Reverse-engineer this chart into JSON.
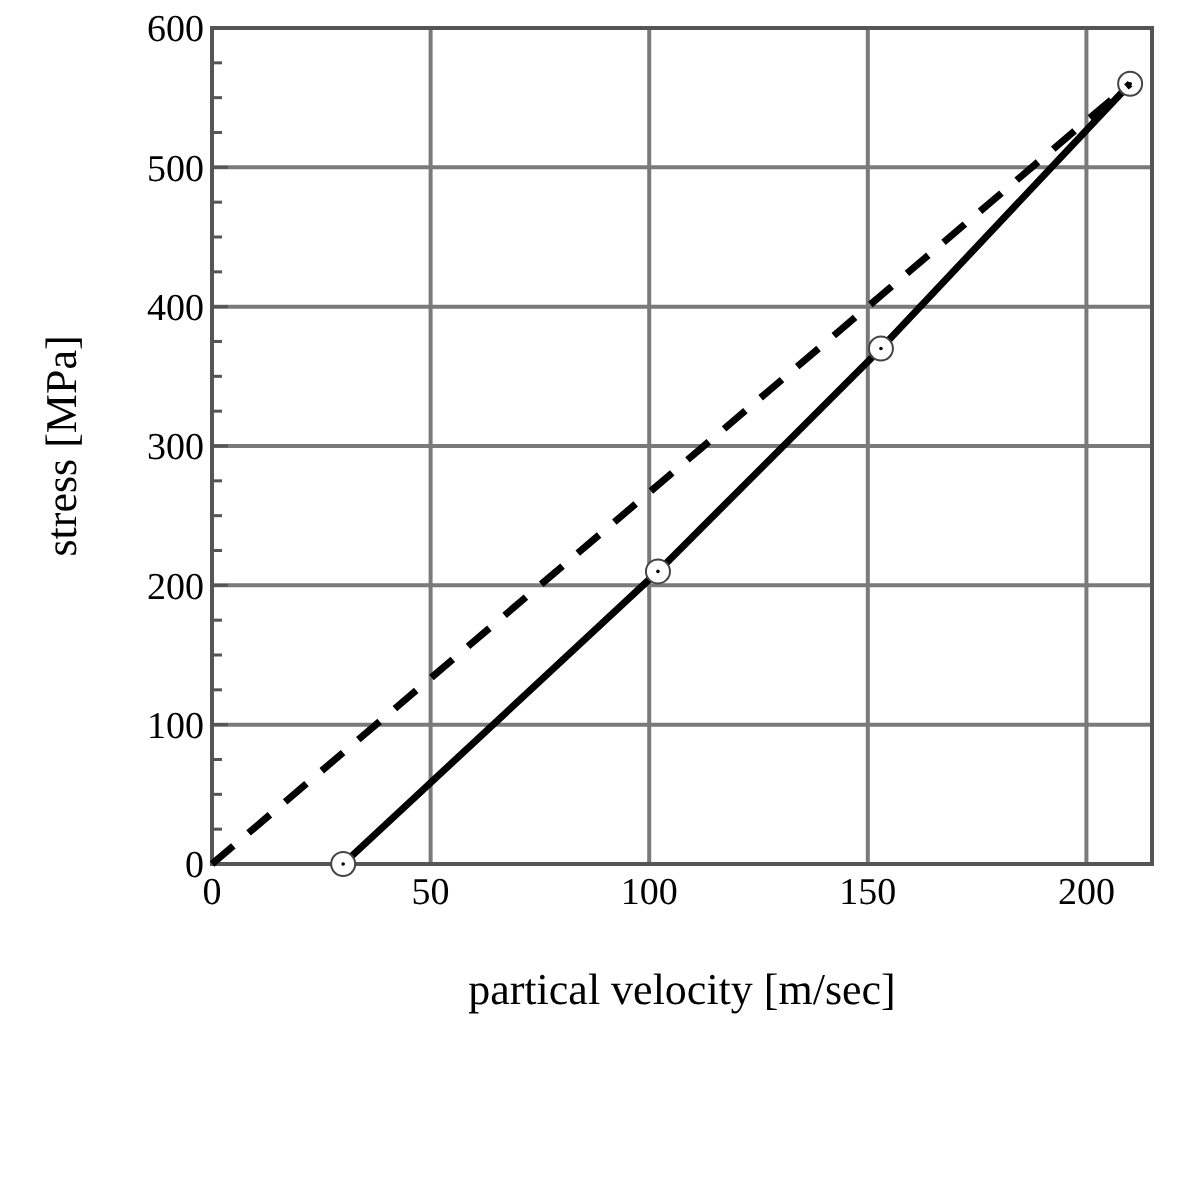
{
  "chart_data": {
    "type": "line",
    "xlabel": "partical velocity [m/sec]",
    "ylabel": "stress [MPa]",
    "xlim": [
      0,
      215
    ],
    "xticks": [
      0,
      50,
      100,
      150,
      200
    ],
    "ylim": [
      0,
      600
    ],
    "yticks": [
      0,
      {
        "value": 25,
        "label": null
      },
      {
        "value": 50,
        "label": null
      },
      {
        "value": 75,
        "label": null
      },
      100,
      {
        "value": 125,
        "label": null
      },
      {
        "value": 150,
        "label": null
      },
      {
        "value": 175,
        "label": null
      },
      200,
      {
        "value": 225,
        "label": null
      },
      {
        "value": 250,
        "label": null
      },
      {
        "value": 275,
        "label": null
      },
      300,
      {
        "value": 325,
        "label": null
      },
      {
        "value": 350,
        "label": null
      },
      {
        "value": 375,
        "label": null
      },
      400,
      {
        "value": 425,
        "label": null
      },
      {
        "value": 450,
        "label": null
      },
      {
        "value": 475,
        "label": null
      },
      500,
      {
        "value": 525,
        "label": null
      },
      {
        "value": 550,
        "label": null
      },
      {
        "value": 575,
        "label": null
      },
      600
    ],
    "grid": true,
    "series": [
      {
        "color": "#000000",
        "x": [
          30,
          102,
          153,
          210
        ],
        "values": [
          0,
          210,
          370,
          560
        ],
        "marker": "circle",
        "line_style": "solid"
      },
      {
        "color": "#000000",
        "x": [
          0,
          210
        ],
        "values": [
          0,
          560
        ],
        "marker": "none",
        "line_style": "dashed"
      }
    ]
  }
}
